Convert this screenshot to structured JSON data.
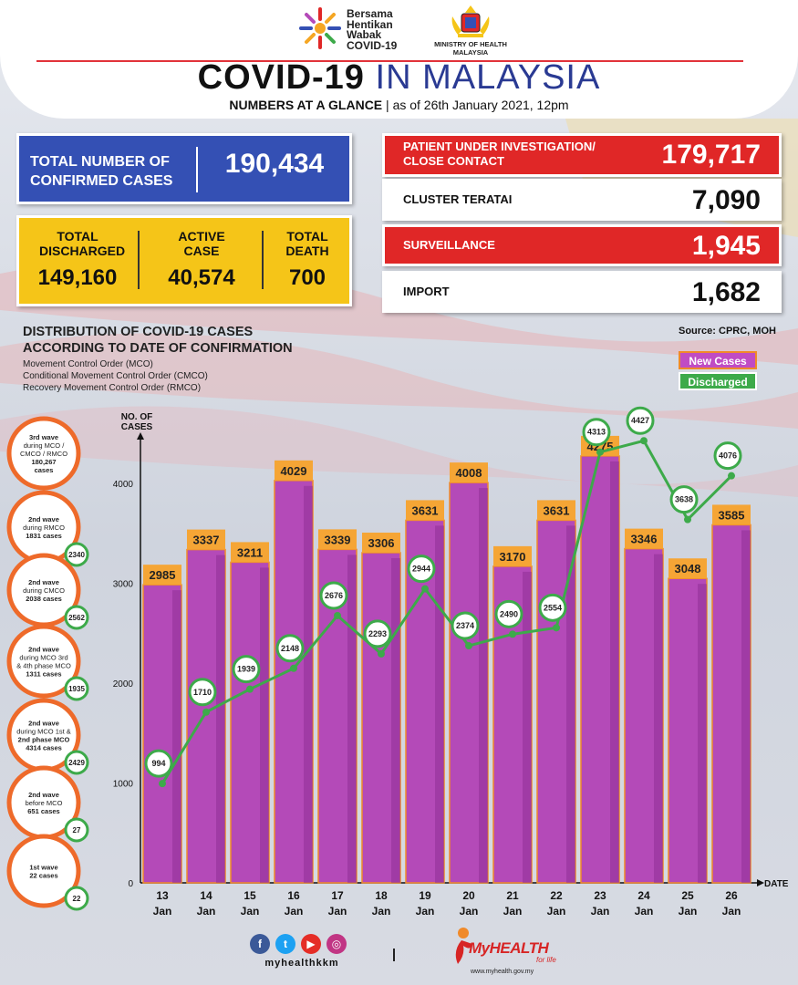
{
  "header": {
    "campaign_logo_text": "Bersama Hentikan Wabak COVID-19",
    "ministry_text": "MINISTRY OF HEALTH MALAYSIA",
    "title_main": "COVID-19",
    "title_highlight": "IN MALAYSIA",
    "subtitle_bold": "NUMBERS AT A GLANCE",
    "subtitle_rest": "as of 26th January 2021, 12pm"
  },
  "summary": {
    "confirmed_label": "TOTAL NUMBER OF CONFIRMED CASES",
    "confirmed_value": "190,434",
    "discharged_label": "TOTAL DISCHARGED",
    "discharged_value": "149,160",
    "active_label": "ACTIVE CASE",
    "active_value": "40,574",
    "death_label": "TOTAL DEATH",
    "death_value": "700"
  },
  "right_panel": [
    {
      "label": "PATIENT UNDER INVESTIGATION/ CLOSE CONTACT",
      "value": "179,717",
      "color": "#e02727"
    },
    {
      "label": "CLUSTER TERATAI",
      "value": "7,090",
      "color": "#ffffff"
    },
    {
      "label": "SURVEILLANCE",
      "value": "1,945",
      "color": "#e02727"
    },
    {
      "label": "IMPORT",
      "value": "1,682",
      "color": "#ffffff"
    }
  ],
  "source": "Source: CPRC, MOH",
  "legend": {
    "new_cases": "New Cases",
    "discharged": "Discharged"
  },
  "distribution": {
    "title_line1": "DISTRIBUTION OF COVID-19 CASES",
    "title_line2": "ACCORDING TO DATE OF CONFIRMATION",
    "notes": [
      "Movement Control Order (MCO)",
      "Conditional Movement Control Order (CMCO)",
      "Recovery Movement Control Order (RMCO)"
    ]
  },
  "waves": [
    {
      "lines": [
        "3rd wave",
        "during MCO /",
        "CMCO / RMCO",
        "180,267",
        "cases"
      ],
      "discharged": ""
    },
    {
      "lines": [
        "2nd wave",
        "during RMCO",
        "1831 cases"
      ],
      "discharged": "2340"
    },
    {
      "lines": [
        "2nd wave",
        "during CMCO",
        "2038 cases"
      ],
      "discharged": "2562"
    },
    {
      "lines": [
        "2nd wave",
        "during MCO 3rd",
        "& 4th phase MCO",
        "1311 cases"
      ],
      "discharged": "1935"
    },
    {
      "lines": [
        "2nd wave",
        "during MCO 1st &",
        "2nd phase MCO",
        "4314 cases"
      ],
      "discharged": "2429"
    },
    {
      "lines": [
        "2nd wave",
        "before MCO",
        "651 cases"
      ],
      "discharged": "27"
    },
    {
      "lines": [
        "1st wave",
        "22 cases"
      ],
      "discharged": "22"
    }
  ],
  "chart_data": {
    "type": "bar",
    "title": "DISTRIBUTION OF COVID-19 CASES ACCORDING TO DATE OF CONFIRMATION",
    "ylabel": "NO. OF CASES",
    "xlabel": "DATE",
    "ylim": [
      0,
      4700
    ],
    "yticks": [
      0,
      1000,
      2000,
      3000,
      4000
    ],
    "categories": [
      [
        "13",
        "Jan"
      ],
      [
        "14",
        "Jan"
      ],
      [
        "15",
        "Jan"
      ],
      [
        "16",
        "Jan"
      ],
      [
        "17",
        "Jan"
      ],
      [
        "18",
        "Jan"
      ],
      [
        "19",
        "Jan"
      ],
      [
        "20",
        "Jan"
      ],
      [
        "21",
        "Jan"
      ],
      [
        "22",
        "Jan"
      ],
      [
        "23",
        "Jan"
      ],
      [
        "24",
        "Jan"
      ],
      [
        "25",
        "Jan"
      ],
      [
        "26",
        "Jan"
      ]
    ],
    "series": [
      {
        "name": "New Cases",
        "type": "bar",
        "color": "#b44ab8",
        "values": [
          2985,
          3337,
          3211,
          4029,
          3339,
          3306,
          3631,
          4008,
          3170,
          3631,
          4275,
          3346,
          3048,
          3585
        ]
      },
      {
        "name": "Discharged",
        "type": "line",
        "color": "#3daa4a",
        "values": [
          994,
          1710,
          1939,
          2148,
          2676,
          2293,
          2944,
          2374,
          2490,
          2554,
          4313,
          4427,
          3638,
          4076
        ]
      }
    ]
  },
  "footer": {
    "handle": "myhealthkkm",
    "brand": "MyHEALTH",
    "tagline": "for life",
    "url": "www.myhealth.gov.my",
    "social_icons": [
      {
        "name": "facebook-icon",
        "glyph": "f",
        "color": "#3b5998"
      },
      {
        "name": "twitter-icon",
        "glyph": "t",
        "color": "#1da1f2"
      },
      {
        "name": "youtube-icon",
        "glyph": "▶",
        "color": "#e52d27"
      },
      {
        "name": "instagram-icon",
        "glyph": "◎",
        "color": "#c13584"
      }
    ]
  }
}
